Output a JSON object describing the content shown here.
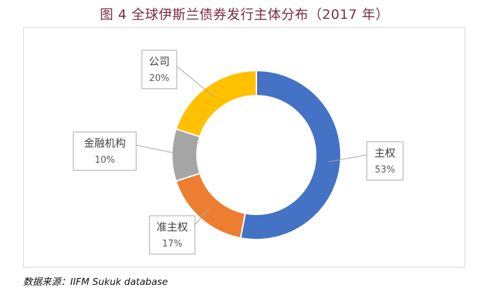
{
  "title": "图 4  全球伊斯兰债券发行主体分布（2017 年）",
  "source": "数据来源：IIFM Sukuk database",
  "chart_data": {
    "type": "pie",
    "variant": "donut",
    "title": "图 4  全球伊斯兰债券发行主体分布（2017 年）",
    "legend": "none",
    "slices": [
      {
        "name": "主权",
        "value": 53,
        "label": "53%",
        "color": "#4472c4"
      },
      {
        "name": "准主权",
        "value": 17,
        "label": "17%",
        "color": "#ed7d31"
      },
      {
        "name": "金融机构",
        "value": 10,
        "label": "10%",
        "color": "#a5a5a5"
      },
      {
        "name": "公司",
        "value": 20,
        "label": "20%",
        "color": "#ffc000"
      }
    ]
  }
}
